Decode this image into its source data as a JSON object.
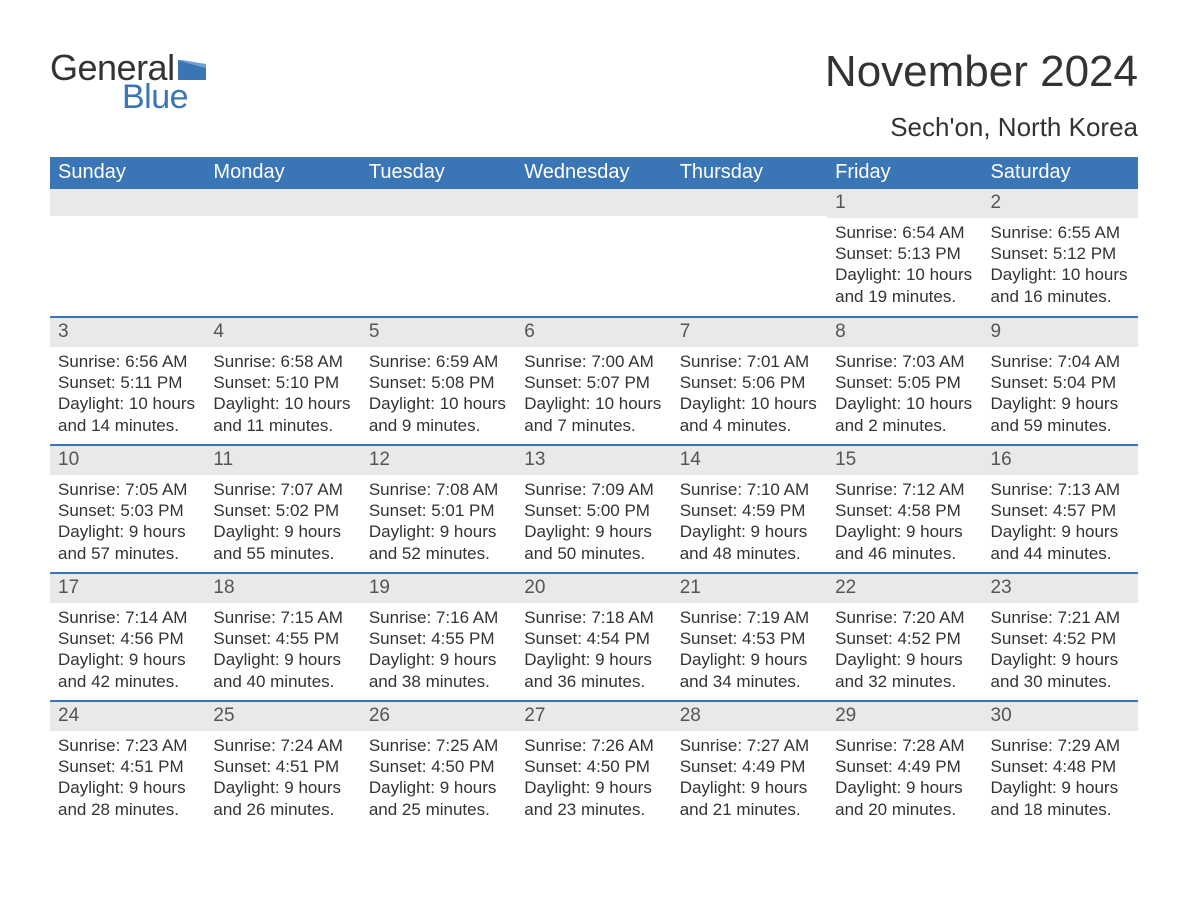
{
  "brand": {
    "general": "General",
    "blue": "Blue",
    "flag_color": "#3a75b5"
  },
  "title": "November 2024",
  "location": "Sech'on, North Korea",
  "colors": {
    "header_bg": "#3a75b5",
    "header_text": "#ffffff",
    "daynum_bg": "#e9e9e9",
    "row_border": "#3a75b5",
    "body_text": "#333333",
    "page_bg": "#ffffff"
  },
  "fonts": {
    "title_size_pt": 33,
    "location_size_pt": 20,
    "header_size_pt": 15,
    "body_size_pt": 13
  },
  "weekdays": [
    "Sunday",
    "Monday",
    "Tuesday",
    "Wednesday",
    "Thursday",
    "Friday",
    "Saturday"
  ],
  "weeks": [
    [
      null,
      null,
      null,
      null,
      null,
      {
        "n": "1",
        "sunrise": "Sunrise: 6:54 AM",
        "sunset": "Sunset: 5:13 PM",
        "dl1": "Daylight: 10 hours",
        "dl2": "and 19 minutes."
      },
      {
        "n": "2",
        "sunrise": "Sunrise: 6:55 AM",
        "sunset": "Sunset: 5:12 PM",
        "dl1": "Daylight: 10 hours",
        "dl2": "and 16 minutes."
      }
    ],
    [
      {
        "n": "3",
        "sunrise": "Sunrise: 6:56 AM",
        "sunset": "Sunset: 5:11 PM",
        "dl1": "Daylight: 10 hours",
        "dl2": "and 14 minutes."
      },
      {
        "n": "4",
        "sunrise": "Sunrise: 6:58 AM",
        "sunset": "Sunset: 5:10 PM",
        "dl1": "Daylight: 10 hours",
        "dl2": "and 11 minutes."
      },
      {
        "n": "5",
        "sunrise": "Sunrise: 6:59 AM",
        "sunset": "Sunset: 5:08 PM",
        "dl1": "Daylight: 10 hours",
        "dl2": "and 9 minutes."
      },
      {
        "n": "6",
        "sunrise": "Sunrise: 7:00 AM",
        "sunset": "Sunset: 5:07 PM",
        "dl1": "Daylight: 10 hours",
        "dl2": "and 7 minutes."
      },
      {
        "n": "7",
        "sunrise": "Sunrise: 7:01 AM",
        "sunset": "Sunset: 5:06 PM",
        "dl1": "Daylight: 10 hours",
        "dl2": "and 4 minutes."
      },
      {
        "n": "8",
        "sunrise": "Sunrise: 7:03 AM",
        "sunset": "Sunset: 5:05 PM",
        "dl1": "Daylight: 10 hours",
        "dl2": "and 2 minutes."
      },
      {
        "n": "9",
        "sunrise": "Sunrise: 7:04 AM",
        "sunset": "Sunset: 5:04 PM",
        "dl1": "Daylight: 9 hours",
        "dl2": "and 59 minutes."
      }
    ],
    [
      {
        "n": "10",
        "sunrise": "Sunrise: 7:05 AM",
        "sunset": "Sunset: 5:03 PM",
        "dl1": "Daylight: 9 hours",
        "dl2": "and 57 minutes."
      },
      {
        "n": "11",
        "sunrise": "Sunrise: 7:07 AM",
        "sunset": "Sunset: 5:02 PM",
        "dl1": "Daylight: 9 hours",
        "dl2": "and 55 minutes."
      },
      {
        "n": "12",
        "sunrise": "Sunrise: 7:08 AM",
        "sunset": "Sunset: 5:01 PM",
        "dl1": "Daylight: 9 hours",
        "dl2": "and 52 minutes."
      },
      {
        "n": "13",
        "sunrise": "Sunrise: 7:09 AM",
        "sunset": "Sunset: 5:00 PM",
        "dl1": "Daylight: 9 hours",
        "dl2": "and 50 minutes."
      },
      {
        "n": "14",
        "sunrise": "Sunrise: 7:10 AM",
        "sunset": "Sunset: 4:59 PM",
        "dl1": "Daylight: 9 hours",
        "dl2": "and 48 minutes."
      },
      {
        "n": "15",
        "sunrise": "Sunrise: 7:12 AM",
        "sunset": "Sunset: 4:58 PM",
        "dl1": "Daylight: 9 hours",
        "dl2": "and 46 minutes."
      },
      {
        "n": "16",
        "sunrise": "Sunrise: 7:13 AM",
        "sunset": "Sunset: 4:57 PM",
        "dl1": "Daylight: 9 hours",
        "dl2": "and 44 minutes."
      }
    ],
    [
      {
        "n": "17",
        "sunrise": "Sunrise: 7:14 AM",
        "sunset": "Sunset: 4:56 PM",
        "dl1": "Daylight: 9 hours",
        "dl2": "and 42 minutes."
      },
      {
        "n": "18",
        "sunrise": "Sunrise: 7:15 AM",
        "sunset": "Sunset: 4:55 PM",
        "dl1": "Daylight: 9 hours",
        "dl2": "and 40 minutes."
      },
      {
        "n": "19",
        "sunrise": "Sunrise: 7:16 AM",
        "sunset": "Sunset: 4:55 PM",
        "dl1": "Daylight: 9 hours",
        "dl2": "and 38 minutes."
      },
      {
        "n": "20",
        "sunrise": "Sunrise: 7:18 AM",
        "sunset": "Sunset: 4:54 PM",
        "dl1": "Daylight: 9 hours",
        "dl2": "and 36 minutes."
      },
      {
        "n": "21",
        "sunrise": "Sunrise: 7:19 AM",
        "sunset": "Sunset: 4:53 PM",
        "dl1": "Daylight: 9 hours",
        "dl2": "and 34 minutes."
      },
      {
        "n": "22",
        "sunrise": "Sunrise: 7:20 AM",
        "sunset": "Sunset: 4:52 PM",
        "dl1": "Daylight: 9 hours",
        "dl2": "and 32 minutes."
      },
      {
        "n": "23",
        "sunrise": "Sunrise: 7:21 AM",
        "sunset": "Sunset: 4:52 PM",
        "dl1": "Daylight: 9 hours",
        "dl2": "and 30 minutes."
      }
    ],
    [
      {
        "n": "24",
        "sunrise": "Sunrise: 7:23 AM",
        "sunset": "Sunset: 4:51 PM",
        "dl1": "Daylight: 9 hours",
        "dl2": "and 28 minutes."
      },
      {
        "n": "25",
        "sunrise": "Sunrise: 7:24 AM",
        "sunset": "Sunset: 4:51 PM",
        "dl1": "Daylight: 9 hours",
        "dl2": "and 26 minutes."
      },
      {
        "n": "26",
        "sunrise": "Sunrise: 7:25 AM",
        "sunset": "Sunset: 4:50 PM",
        "dl1": "Daylight: 9 hours",
        "dl2": "and 25 minutes."
      },
      {
        "n": "27",
        "sunrise": "Sunrise: 7:26 AM",
        "sunset": "Sunset: 4:50 PM",
        "dl1": "Daylight: 9 hours",
        "dl2": "and 23 minutes."
      },
      {
        "n": "28",
        "sunrise": "Sunrise: 7:27 AM",
        "sunset": "Sunset: 4:49 PM",
        "dl1": "Daylight: 9 hours",
        "dl2": "and 21 minutes."
      },
      {
        "n": "29",
        "sunrise": "Sunrise: 7:28 AM",
        "sunset": "Sunset: 4:49 PM",
        "dl1": "Daylight: 9 hours",
        "dl2": "and 20 minutes."
      },
      {
        "n": "30",
        "sunrise": "Sunrise: 7:29 AM",
        "sunset": "Sunset: 4:48 PM",
        "dl1": "Daylight: 9 hours",
        "dl2": "and 18 minutes."
      }
    ]
  ]
}
